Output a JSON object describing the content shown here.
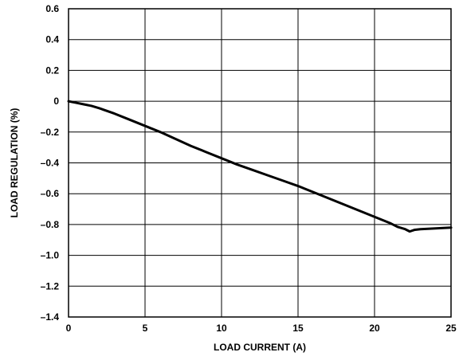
{
  "chart_data": {
    "type": "line",
    "title": "",
    "xlabel": "LOAD CURRENT (A)",
    "ylabel": "LOAD REGULATION (%)",
    "xlim": [
      0,
      25
    ],
    "ylim": [
      -1.4,
      0.6
    ],
    "grid": true,
    "x_ticks": [
      0,
      5,
      10,
      15,
      20,
      25
    ],
    "x_tick_labels": [
      "0",
      "5",
      "10",
      "15",
      "20",
      "25"
    ],
    "y_ticks": [
      0.6,
      0.4,
      0.2,
      0,
      -0.2,
      -0.4,
      -0.6,
      -0.8,
      -1.0,
      -1.2,
      -1.4
    ],
    "y_tick_labels": [
      "0.6",
      "0.4",
      "0.2",
      "0",
      "–0.2",
      "–0.4",
      "–0.6",
      "–0.8",
      "–1.0",
      "–1.2",
      "–1.4"
    ],
    "series": [
      {
        "x": [
          0,
          0.5,
          1,
          1.5,
          2,
          3,
          4,
          5,
          6,
          7,
          8,
          9,
          10,
          11,
          12,
          13,
          14,
          15,
          16,
          17,
          18,
          19,
          20,
          21,
          21.5,
          22,
          22.3,
          22.6,
          23,
          24,
          25
        ],
        "y": [
          0,
          -0.01,
          -0.02,
          -0.03,
          -0.045,
          -0.08,
          -0.12,
          -0.16,
          -0.2,
          -0.245,
          -0.29,
          -0.33,
          -0.37,
          -0.41,
          -0.445,
          -0.48,
          -0.515,
          -0.55,
          -0.59,
          -0.63,
          -0.67,
          -0.71,
          -0.75,
          -0.79,
          -0.815,
          -0.83,
          -0.845,
          -0.835,
          -0.83,
          -0.825,
          -0.82
        ]
      }
    ]
  }
}
